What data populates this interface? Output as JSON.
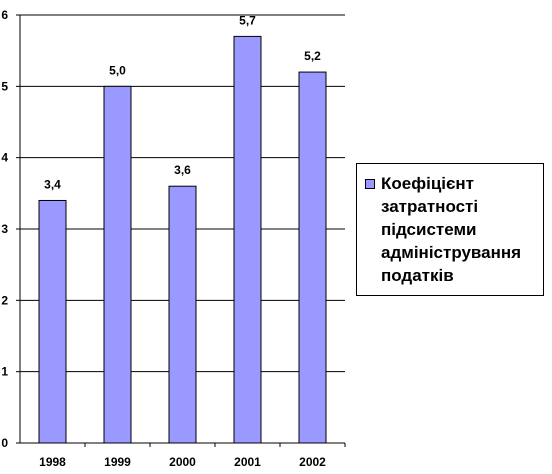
{
  "chart_data": {
    "type": "bar",
    "categories": [
      "1998",
      "1999",
      "2000",
      "2001",
      "2002"
    ],
    "series": [
      {
        "name": "Коефіцієнт затратності підсистеми адміністрування податків",
        "values": [
          3.4,
          5.0,
          3.6,
          5.7,
          5.2
        ],
        "labels": [
          "3,4",
          "5,0",
          "3,6",
          "5,7",
          "5,2"
        ],
        "color": "#9999ff"
      }
    ],
    "y_ticks": [
      "0",
      "1",
      "2",
      "3",
      "4",
      "5",
      "6"
    ],
    "ylim": [
      0,
      6
    ],
    "grid": true,
    "legend_position": "right",
    "bar_edge_color": "#000000"
  }
}
